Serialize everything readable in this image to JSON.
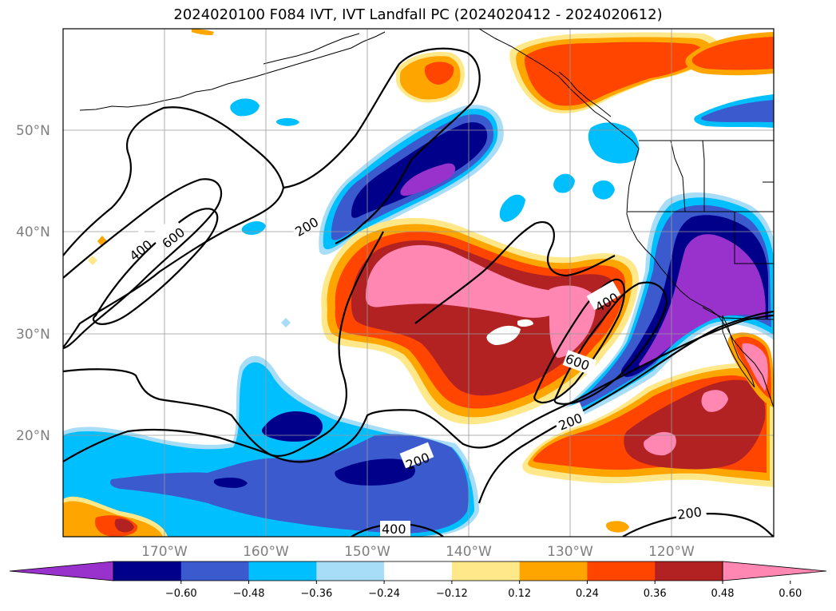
{
  "title": "2024020100 F084 IVT, IVT Landfall PC (2024020412 - 2024020612)",
  "lat_labels": [
    "50°N",
    "40°N",
    "30°N",
    "20°N"
  ],
  "lon_labels": [
    "170°W",
    "160°W",
    "150°W",
    "140°W",
    "130°W",
    "120°W"
  ],
  "contour_labels": [
    "400",
    "600",
    "200",
    "400",
    "600",
    "200",
    "200",
    "400",
    "200"
  ],
  "colorbar": {
    "ticks": [
      "−0.60",
      "−0.48",
      "−0.36",
      "−0.24",
      "−0.12",
      "0.12",
      "0.24",
      "0.36",
      "0.48",
      "0.60"
    ],
    "colors": [
      "#9932cc",
      "#00008b",
      "#3a5acd",
      "#00bfff",
      "#a8ddf7",
      "#ffffff",
      "#ffe88a",
      "#ffa500",
      "#ff4500",
      "#b22222",
      "#ff87b1"
    ]
  }
}
